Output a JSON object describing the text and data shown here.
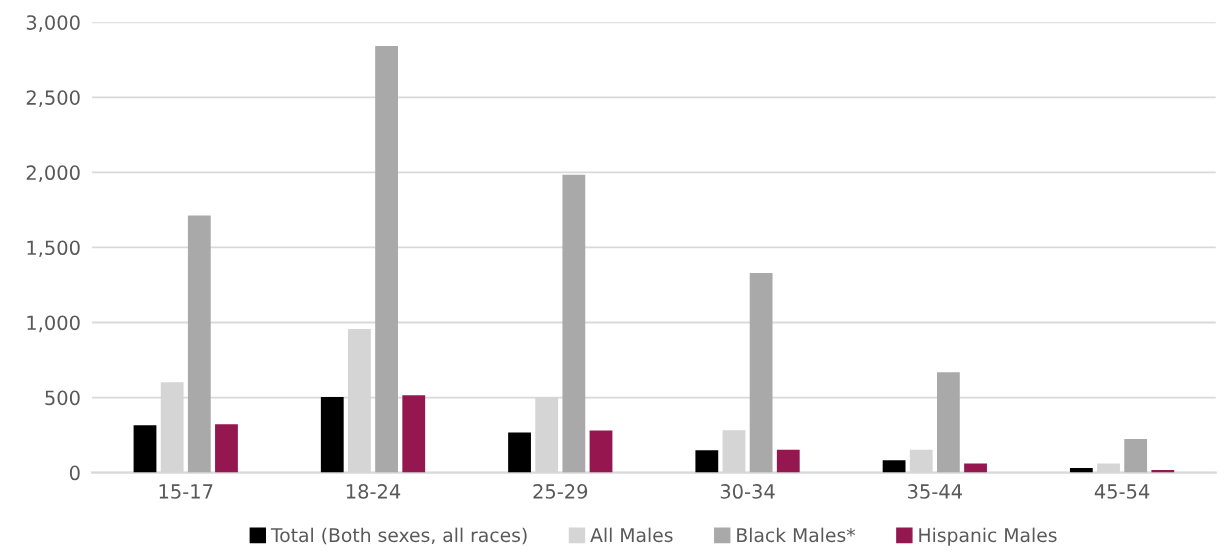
{
  "chart_data": {
    "type": "bar",
    "categories": [
      "15-17",
      "18-24",
      "25-29",
      "30-34",
      "35-44",
      "45-54"
    ],
    "series": [
      {
        "name": "Total (Both sexes, all races)",
        "color": "#000000",
        "values": [
          316,
          504,
          267,
          149,
          82,
          31
        ]
      },
      {
        "name": "All Males",
        "color": "#d5d5d5",
        "values": [
          602,
          956,
          504,
          282,
          153,
          60
        ]
      },
      {
        "name": "Black Males*",
        "color": "#a9a9a9",
        "values": [
          1713,
          2842,
          1984,
          1329,
          669,
          224
        ]
      },
      {
        "name": "Hispanic Males",
        "color": "#95174f",
        "values": [
          322,
          516,
          280,
          153,
          60,
          18
        ]
      }
    ],
    "ylim": [
      0,
      3000
    ],
    "yticks": [
      {
        "value": 0,
        "label": "0"
      },
      {
        "value": 500,
        "label": "500"
      },
      {
        "value": 1000,
        "label": "1,000"
      },
      {
        "value": 1500,
        "label": "1,500"
      },
      {
        "value": 2000,
        "label": "2,000"
      },
      {
        "value": 2500,
        "label": "2,500"
      },
      {
        "value": 3000,
        "label": "3,000"
      }
    ],
    "grid": "y",
    "legend": "bottom"
  }
}
